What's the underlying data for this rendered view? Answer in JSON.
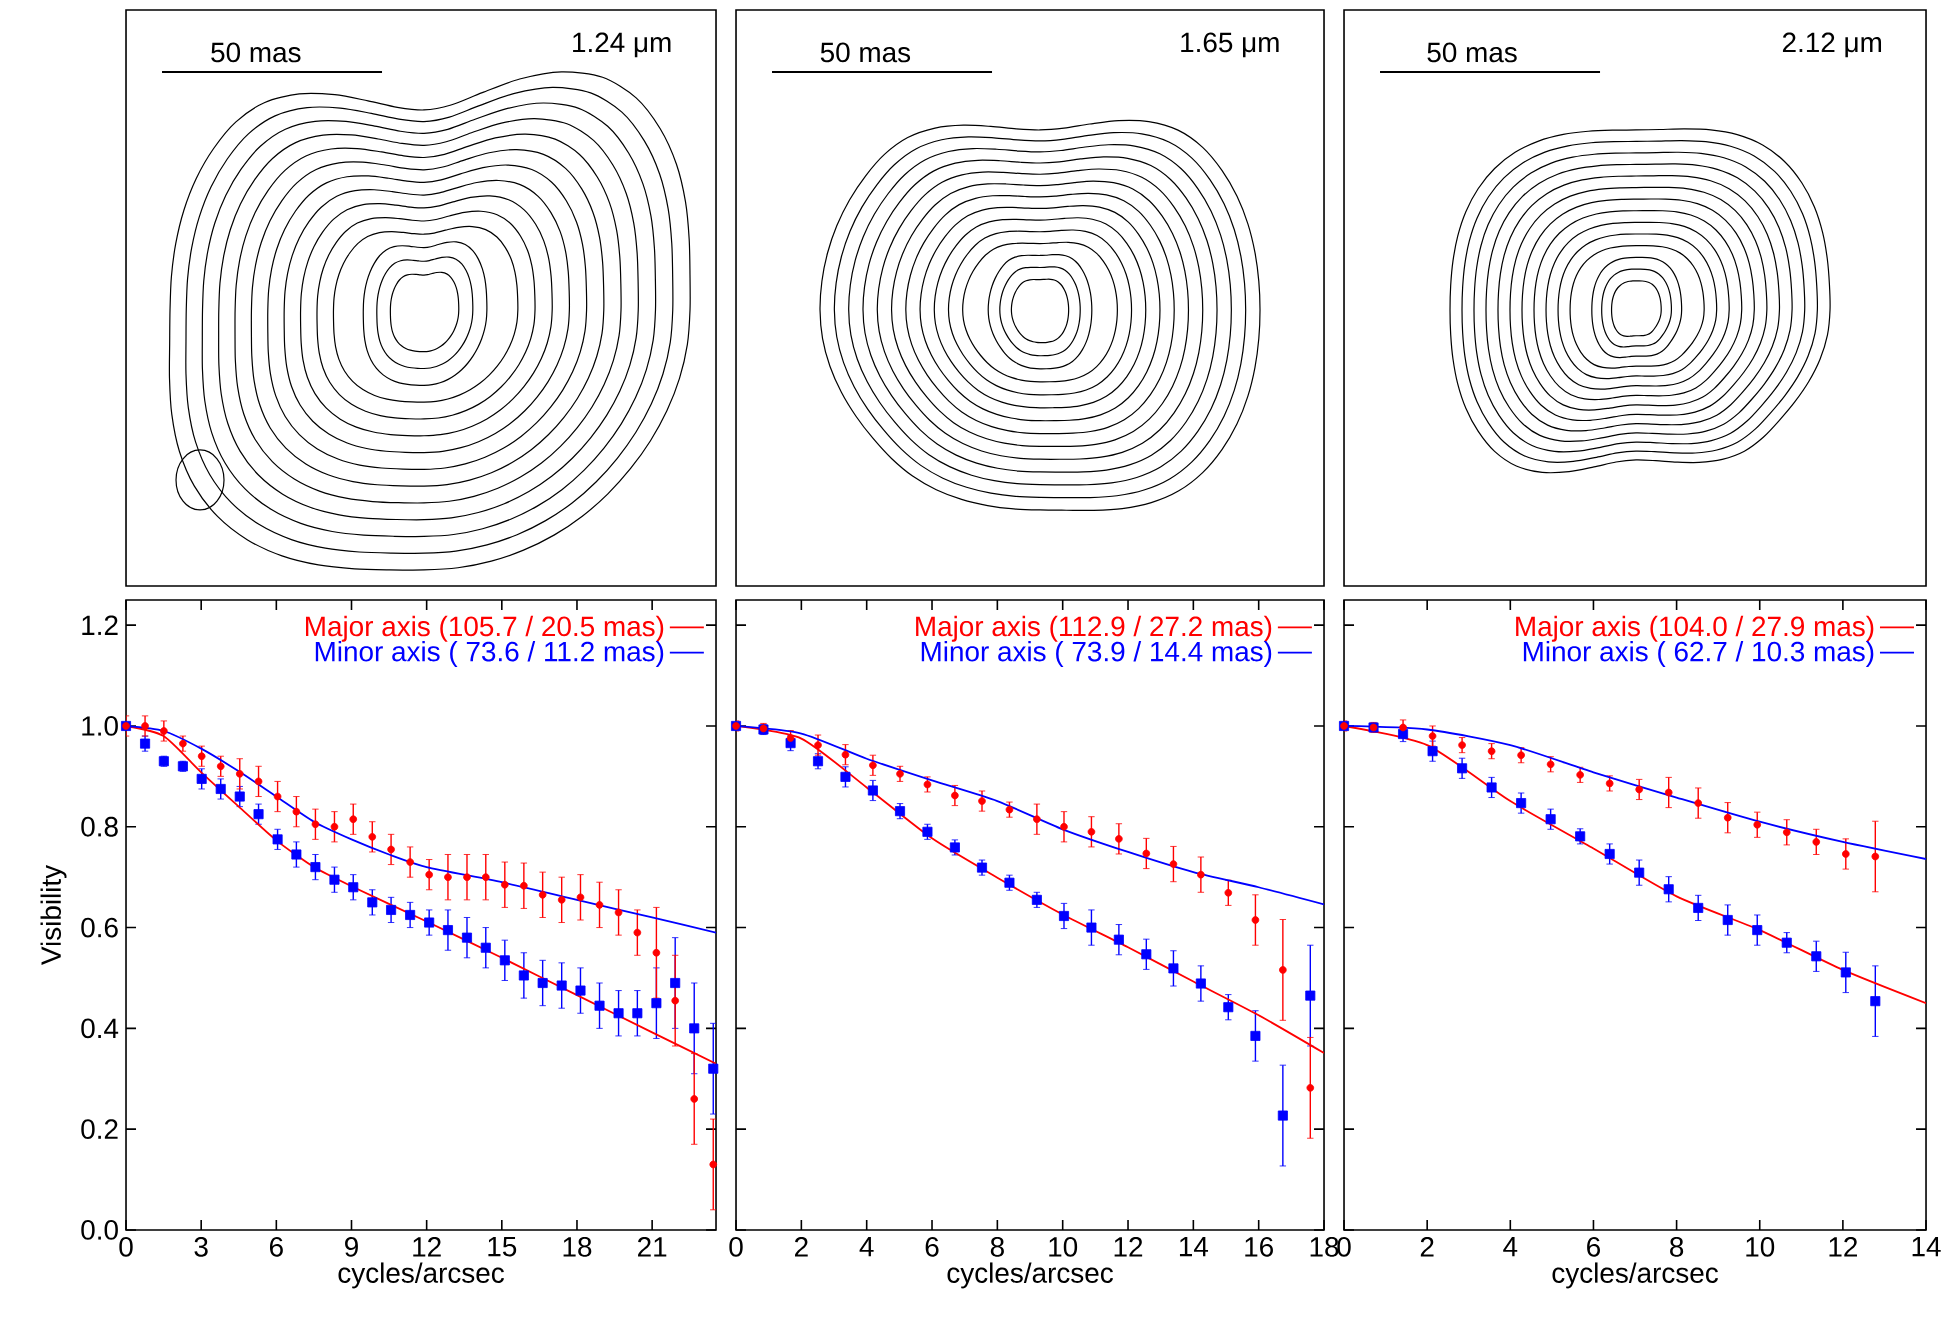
{
  "chart_data": [
    {
      "type": "other",
      "annotations": [
        "50 mas",
        "1.24 μm"
      ]
    },
    {
      "type": "other",
      "annotations": [
        "50 mas",
        "1.65 μm"
      ]
    },
    {
      "type": "other",
      "annotations": [
        "50 mas",
        "2.12 μm"
      ]
    },
    {
      "type": "scatter",
      "xlabel": "cycles/arcsec",
      "ylabel": "Visibility",
      "xlim": [
        0,
        23.55
      ],
      "ylim": [
        0,
        1.25
      ],
      "xticks": [
        0,
        3,
        6,
        9,
        12,
        15,
        18,
        21
      ],
      "yticks": [
        {
          "value": 0,
          "label": "0.0"
        },
        0.2,
        0.4,
        0.6,
        0.8,
        {
          "value": 1,
          "label": "1.0"
        },
        1.2
      ],
      "legend": "top right",
      "x": [
        0,
        0.76,
        1.51,
        2.27,
        3.02,
        3.78,
        4.54,
        5.29,
        6.05,
        6.8,
        7.56,
        8.32,
        9.07,
        9.83,
        10.58,
        11.34,
        12.1,
        12.85,
        13.61,
        14.36,
        15.12,
        15.88,
        16.63,
        17.39,
        18.14,
        18.9,
        19.66,
        20.41,
        21.17,
        21.92,
        22.68,
        23.44
      ],
      "series": [
        {
          "color": "#ff0000",
          "marker": "circle",
          "values": [
            1.0,
            1.0,
            0.99,
            0.965,
            0.94,
            0.92,
            0.905,
            0.89,
            0.86,
            0.83,
            0.805,
            0.8,
            0.815,
            0.78,
            0.755,
            0.73,
            0.705,
            0.7,
            0.7,
            0.7,
            0.685,
            0.683,
            0.665,
            0.655,
            0.66,
            0.645,
            0.63,
            0.59,
            0.55,
            0.455,
            0.26,
            0.13
          ],
          "errors": [
            0.02,
            0.02,
            0.02,
            0.015,
            0.02,
            0.02,
            0.03,
            0.03,
            0.03,
            0.03,
            0.03,
            0.03,
            0.03,
            0.03,
            0.03,
            0.03,
            0.03,
            0.045,
            0.045,
            0.045,
            0.045,
            0.045,
            0.045,
            0.045,
            0.045,
            0.045,
            0.045,
            0.045,
            0.09,
            0.09,
            0.09,
            0.09
          ]
        },
        {
          "color": "#0000ff",
          "marker": "square",
          "values": [
            1.0,
            0.965,
            0.93,
            0.92,
            0.895,
            0.875,
            0.86,
            0.825,
            0.775,
            0.745,
            0.72,
            0.695,
            0.68,
            0.65,
            0.635,
            0.625,
            0.61,
            0.595,
            0.58,
            0.56,
            0.535,
            0.505,
            0.49,
            0.485,
            0.475,
            0.445,
            0.43,
            0.43,
            0.45,
            0.49,
            0.4,
            0.32
          ],
          "errors": [
            null,
            0.015,
            0.01,
            0.01,
            0.02,
            0.02,
            0.02,
            0.02,
            0.02,
            0.025,
            0.025,
            0.025,
            0.025,
            0.025,
            0.025,
            0.025,
            0.025,
            0.04,
            0.04,
            0.04,
            0.04,
            0.045,
            0.045,
            0.045,
            0.045,
            0.045,
            0.045,
            0.045,
            0.07,
            0.09,
            0.09,
            0.09
          ]
        },
        {
          "type": "line",
          "name": "Major axis (105.7 / 20.5 mas)",
          "color": "#ff0000",
          "marker": "none",
          "x": [
            0,
            1.5,
            3,
            4.5,
            6,
            7.5,
            9,
            12,
            15,
            18,
            21,
            23.55
          ],
          "values": [
            1.0,
            0.98,
            0.908,
            0.84,
            0.773,
            0.72,
            0.682,
            0.612,
            0.54,
            0.466,
            0.392,
            0.33
          ]
        },
        {
          "type": "line",
          "name": "Minor axis ( 73.6 / 11.2 mas)",
          "color": "#0000ff",
          "marker": "none",
          "x": [
            0,
            1.5,
            3,
            4.5,
            6,
            7.5,
            9,
            10.5,
            12,
            15,
            18,
            21,
            23.55
          ],
          "values": [
            1.0,
            0.99,
            0.955,
            0.91,
            0.86,
            0.81,
            0.775,
            0.745,
            0.72,
            0.69,
            0.655,
            0.62,
            0.59
          ]
        }
      ]
    },
    {
      "type": "scatter",
      "xlabel": "cycles/arcsec",
      "xlim": [
        0,
        18
      ],
      "ylim": [
        0,
        1.25
      ],
      "xticks": [
        0,
        2,
        4,
        6,
        8,
        10,
        12,
        14,
        16,
        18
      ],
      "yticks": [
        0,
        0.2,
        0.4,
        0.6,
        0.8,
        1,
        1.2
      ],
      "tick_labels": "x",
      "legend": "top right",
      "x": [
        0,
        0.84,
        1.67,
        2.51,
        3.35,
        4.19,
        5.02,
        5.86,
        6.7,
        7.53,
        8.37,
        9.21,
        10.04,
        10.88,
        11.72,
        12.56,
        13.39,
        14.23,
        15.07,
        15.9,
        16.74,
        17.58
      ],
      "series": [
        {
          "color": "#ff0000",
          "marker": "circle",
          "values": [
            1.0,
            0.995,
            0.976,
            0.962,
            0.943,
            0.922,
            0.905,
            0.884,
            0.862,
            0.851,
            0.834,
            0.815,
            0.8,
            0.79,
            0.776,
            0.747,
            0.726,
            0.705,
            0.669,
            0.615,
            0.516,
            0.282
          ],
          "errors": [
            0.01,
            0.01,
            0.015,
            0.02,
            0.02,
            0.02,
            0.015,
            0.015,
            0.02,
            0.02,
            0.015,
            0.03,
            0.03,
            0.03,
            0.03,
            0.03,
            0.035,
            0.035,
            0.025,
            0.05,
            0.1,
            0.1
          ]
        },
        {
          "color": "#0000ff",
          "marker": "square",
          "values": [
            1.0,
            0.993,
            0.966,
            0.93,
            0.899,
            0.872,
            0.831,
            0.79,
            0.759,
            0.719,
            0.689,
            0.655,
            0.623,
            0.6,
            0.576,
            0.547,
            0.519,
            0.489,
            0.442,
            0.385,
            0.227,
            0.465
          ],
          "errors": [
            null,
            0.01,
            0.015,
            0.015,
            0.02,
            0.02,
            0.015,
            0.015,
            0.015,
            0.015,
            0.015,
            0.015,
            0.025,
            0.035,
            0.03,
            0.03,
            0.035,
            0.035,
            0.025,
            0.05,
            0.1,
            0.1
          ]
        },
        {
          "type": "line",
          "name": "Major axis (112.9 / 27.2 mas)",
          "color": "#ff0000",
          "marker": "none",
          "x": [
            0,
            2,
            4,
            6,
            8,
            10,
            12,
            14,
            16,
            18
          ],
          "values": [
            1.0,
            0.975,
            0.878,
            0.777,
            0.699,
            0.626,
            0.561,
            0.493,
            0.426,
            0.351
          ]
        },
        {
          "type": "line",
          "name": "Minor axis ( 73.9 / 14.4 mas)",
          "color": "#0000ff",
          "marker": "none",
          "x": [
            0,
            2,
            4,
            6,
            8,
            10,
            12,
            14,
            16,
            18
          ],
          "values": [
            1.0,
            0.985,
            0.935,
            0.892,
            0.851,
            0.795,
            0.75,
            0.71,
            0.68,
            0.646
          ]
        }
      ]
    },
    {
      "type": "scatter",
      "xlabel": "cycles/arcsec",
      "xlim": [
        0,
        14
      ],
      "ylim": [
        0,
        1.25
      ],
      "xticks": [
        0,
        2,
        4,
        6,
        8,
        10,
        12,
        14
      ],
      "yticks": [
        0,
        0.2,
        0.4,
        0.6,
        0.8,
        1,
        1.2
      ],
      "tick_labels": "x",
      "legend": "top right",
      "x": [
        0,
        0.71,
        1.42,
        2.13,
        2.84,
        3.55,
        4.26,
        4.97,
        5.68,
        6.39,
        7.1,
        7.81,
        8.52,
        9.23,
        9.94,
        10.65,
        11.36,
        12.07,
        12.78
      ],
      "series": [
        {
          "color": "#ff0000",
          "marker": "circle",
          "values": [
            1.0,
            0.997,
            0.997,
            0.98,
            0.962,
            0.95,
            0.942,
            0.924,
            0.903,
            0.886,
            0.874,
            0.868,
            0.847,
            0.818,
            0.804,
            0.789,
            0.77,
            0.746,
            0.741
          ],
          "errors": [
            0.01,
            0.01,
            0.015,
            0.02,
            0.015,
            0.015,
            0.015,
            0.015,
            0.015,
            0.015,
            0.02,
            0.03,
            0.03,
            0.03,
            0.025,
            0.025,
            0.025,
            0.03,
            0.07
          ]
        },
        {
          "color": "#0000ff",
          "marker": "square",
          "values": [
            1.0,
            0.997,
            0.984,
            0.95,
            0.916,
            0.878,
            0.847,
            0.815,
            0.781,
            0.746,
            0.709,
            0.676,
            0.639,
            0.615,
            0.595,
            0.57,
            0.543,
            0.511,
            0.454
          ],
          "errors": [
            null,
            null,
            0.015,
            0.02,
            0.02,
            0.02,
            0.02,
            0.02,
            0.015,
            0.02,
            0.025,
            0.025,
            0.025,
            0.03,
            0.03,
            0.02,
            0.03,
            0.04,
            0.07
          ]
        },
        {
          "type": "line",
          "name": "Major axis (104.0 / 27.9 mas)",
          "color": "#ff0000",
          "marker": "none",
          "x": [
            0,
            2,
            4,
            6,
            8,
            10,
            12,
            14
          ],
          "values": [
            1.0,
            0.962,
            0.851,
            0.757,
            0.662,
            0.595,
            0.516,
            0.45
          ]
        },
        {
          "type": "line",
          "name": "Minor axis ( 62.7 / 10.3 mas)",
          "color": "#0000ff",
          "marker": "none",
          "x": [
            0,
            2,
            4,
            6,
            8,
            10,
            12,
            14
          ],
          "values": [
            1.0,
            0.993,
            0.962,
            0.908,
            0.858,
            0.81,
            0.77,
            0.736
          ]
        }
      ]
    }
  ]
}
